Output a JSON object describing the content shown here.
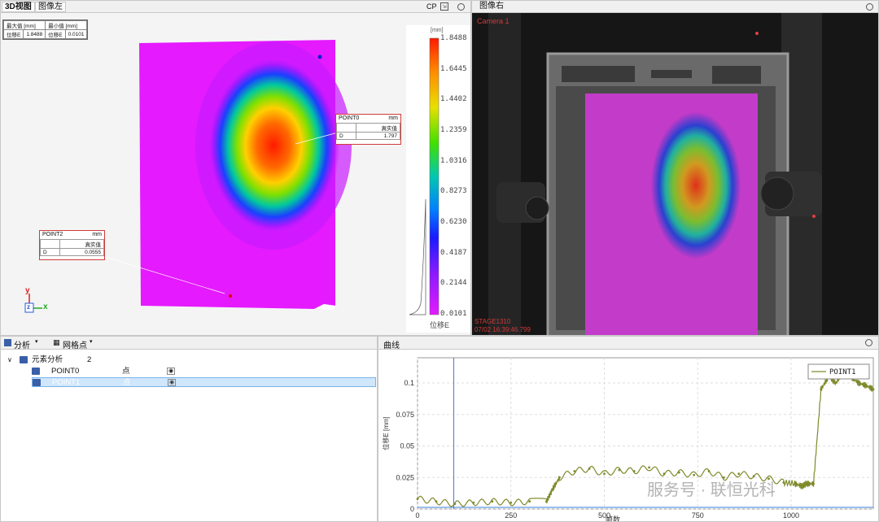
{
  "left_panel": {
    "tabs": [
      "3D视图",
      "图像左"
    ],
    "toolbar_label": "CP",
    "info_table": {
      "rows": [
        [
          "最大值 [mm]",
          "",
          "最小值 [mm]",
          ""
        ],
        [
          "位移E",
          "1.8488",
          "位移E",
          "0.0101"
        ]
      ]
    },
    "point0": {
      "name": "POINT0",
      "unit": "mm",
      "col": "真实值",
      "row_label": "D",
      "value": "1.797"
    },
    "point2": {
      "name": "POINT2",
      "unit": "mm",
      "col": "真实值",
      "row_label": "D",
      "value": "0.0555"
    },
    "axis": {
      "y": "y",
      "x": "x",
      "z": "z"
    },
    "scale": {
      "unit": "[mm]",
      "ticks": [
        "1.8488",
        "1.6445",
        "1.4402",
        "1.2359",
        "1.0316",
        "0.8273",
        "0.6230",
        "0.4187",
        "0.2144",
        "0.0101"
      ],
      "caption": "位移E"
    }
  },
  "right_panel": {
    "tab": "图像右",
    "camera_label": "Camera 1",
    "stage_label": "STAGE1310",
    "timestamp": "07/02 16:39:46.799"
  },
  "analysis_panel": {
    "toolbar": {
      "analysis": "分析",
      "grid": "网格点"
    },
    "tree": {
      "root_label": "元素分析",
      "root_count": "2",
      "items": [
        {
          "name": "POINT0",
          "type": "点"
        },
        {
          "name": "POINT1",
          "type": "点"
        }
      ]
    }
  },
  "curve_panel": {
    "title": "曲线",
    "legend": "POINT1",
    "ylabel": "位移E [mm]",
    "xlabel": "帧数",
    "watermark": "服务号 · 联恒光科"
  },
  "chart_data": {
    "type": "line",
    "title": "",
    "xlabel": "帧数",
    "ylabel": "位移E [mm]",
    "xlim": [
      0,
      1220
    ],
    "ylim": [
      0,
      0.12
    ],
    "x_ticks": [
      0,
      250,
      500,
      750,
      1000
    ],
    "y_ticks": [
      0,
      0.025,
      0.05,
      0.075,
      0.1
    ],
    "grid": true,
    "legend_position": "top-right",
    "marker_x": 97,
    "series": [
      {
        "name": "POINT1",
        "color": "#7f8a2a",
        "x": [
          0,
          50,
          100,
          150,
          200,
          250,
          300,
          345,
          360,
          380,
          420,
          460,
          500,
          540,
          580,
          620,
          660,
          700,
          740,
          780,
          820,
          860,
          900,
          940,
          980,
          1010,
          1030,
          1040,
          1060,
          1080,
          1100,
          1120,
          1140,
          1160,
          1180,
          1200,
          1220
        ],
        "y": [
          0.008,
          0.006,
          0.004,
          0.005,
          0.006,
          0.005,
          0.006,
          0.006,
          0.015,
          0.025,
          0.03,
          0.032,
          0.028,
          0.031,
          0.03,
          0.033,
          0.028,
          0.029,
          0.027,
          0.03,
          0.025,
          0.028,
          0.026,
          0.024,
          0.021,
          0.02,
          0.018,
          0.02,
          0.02,
          0.095,
          0.105,
          0.1,
          0.11,
          0.105,
          0.1,
          0.098,
          0.095
        ]
      }
    ]
  },
  "colors": {
    "accent": "#d23a3a",
    "selection": "#cfe6fb",
    "series": "#7f8a2a",
    "marker_line": "#3b7dd8"
  }
}
